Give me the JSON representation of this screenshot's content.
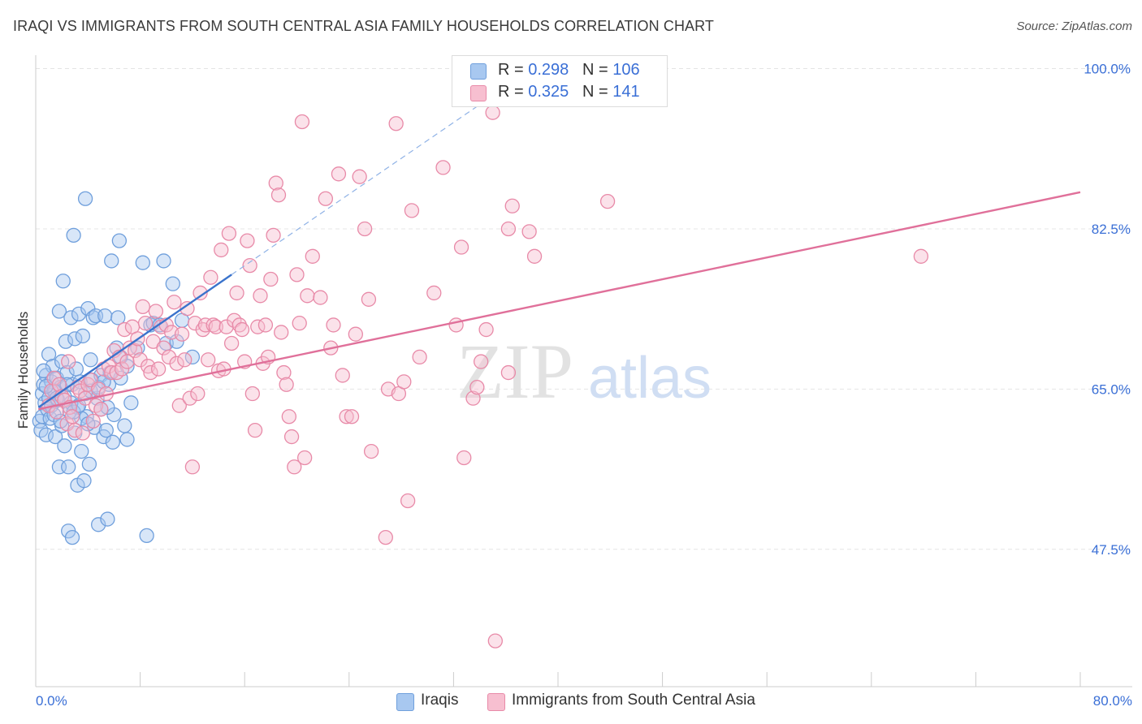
{
  "title": "IRAQI VS IMMIGRANTS FROM SOUTH CENTRAL ASIA FAMILY HOUSEHOLDS CORRELATION CHART",
  "source": "Source: ZipAtlas.com",
  "watermark": {
    "zip": "ZIP",
    "atlas": "atlas"
  },
  "legend_top": [
    {
      "r_label": "R = ",
      "r_value": "0.298",
      "n_label": "N = ",
      "n_value": "106"
    },
    {
      "r_label": "R = ",
      "r_value": "0.325",
      "n_label": "N = ",
      "n_value": " 141"
    }
  ],
  "legend_bottom": [
    "Iraqis",
    "Immigrants from South Central Asia"
  ],
  "colors": {
    "blue_fill": "#a8c8f0",
    "blue_stroke": "#6f9fdc",
    "blue_line": "#3a73cc",
    "pink_fill": "#f7bfd0",
    "pink_stroke": "#e88aa8",
    "pink_line": "#e0709a",
    "tick_label": "#3a6fd6",
    "grid": "#e4e4e4"
  },
  "chart_data": {
    "type": "scatter",
    "title": "IRAQI VS IMMIGRANTS FROM SOUTH CENTRAL ASIA FAMILY HOUSEHOLDS CORRELATION CHART",
    "xlabel": "",
    "ylabel": "Family Households",
    "xlim": [
      0,
      80
    ],
    "ylim": [
      32.5,
      102
    ],
    "x_tick_labels": [
      "0.0%",
      "80.0%"
    ],
    "y_ticks": [
      47.5,
      65.0,
      82.5,
      100.0
    ],
    "y_tick_labels": [
      "47.5%",
      "65.0%",
      "82.5%",
      "100.0%"
    ],
    "grid": true,
    "legend_placement": "top-center",
    "series": [
      {
        "name": "Iraqis",
        "R": 0.298,
        "N": 106,
        "trend": {
          "x": [
            0.2,
            15
          ],
          "y": [
            63.0,
            77.5
          ]
        },
        "trend_extension": {
          "x": [
            15,
            37
          ],
          "y": [
            77.5,
            99.0
          ]
        },
        "points": [
          [
            0.3,
            61.5
          ],
          [
            0.4,
            60.5
          ],
          [
            0.5,
            62.0
          ],
          [
            0.5,
            64.5
          ],
          [
            0.6,
            65.5
          ],
          [
            0.7,
            63.5
          ],
          [
            0.8,
            66.5
          ],
          [
            0.8,
            60.0
          ],
          [
            0.9,
            62.8
          ],
          [
            1.0,
            64.0
          ],
          [
            1.0,
            68.8
          ],
          [
            1.1,
            61.8
          ],
          [
            1.2,
            65.8
          ],
          [
            1.2,
            63.2
          ],
          [
            1.3,
            67.5
          ],
          [
            1.4,
            62.2
          ],
          [
            1.5,
            64.8
          ],
          [
            1.5,
            59.8
          ],
          [
            1.6,
            66.2
          ],
          [
            1.7,
            63.8
          ],
          [
            1.8,
            73.5
          ],
          [
            1.8,
            56.5
          ],
          [
            1.9,
            65.2
          ],
          [
            2.0,
            61.0
          ],
          [
            2.0,
            68.0
          ],
          [
            2.1,
            76.8
          ],
          [
            2.2,
            58.8
          ],
          [
            2.2,
            64.2
          ],
          [
            2.3,
            70.2
          ],
          [
            2.4,
            66.8
          ],
          [
            2.5,
            56.5
          ],
          [
            2.5,
            49.5
          ],
          [
            2.6,
            62.5
          ],
          [
            2.7,
            72.8
          ],
          [
            2.8,
            65.5
          ],
          [
            2.8,
            48.8
          ],
          [
            2.9,
            81.8
          ],
          [
            3.0,
            70.5
          ],
          [
            3.0,
            60.2
          ],
          [
            3.1,
            67.2
          ],
          [
            3.2,
            54.5
          ],
          [
            3.2,
            63.0
          ],
          [
            3.3,
            73.2
          ],
          [
            3.4,
            65.8
          ],
          [
            3.5,
            58.2
          ],
          [
            3.6,
            70.8
          ],
          [
            3.7,
            55.0
          ],
          [
            3.8,
            64.5
          ],
          [
            3.8,
            85.8
          ],
          [
            3.9,
            62.0
          ],
          [
            4.0,
            73.8
          ],
          [
            4.1,
            56.8
          ],
          [
            4.2,
            68.2
          ],
          [
            4.3,
            66.0
          ],
          [
            4.4,
            72.8
          ],
          [
            4.5,
            60.8
          ],
          [
            4.6,
            73.0
          ],
          [
            4.7,
            64.0
          ],
          [
            4.8,
            50.2
          ],
          [
            5.0,
            66.5
          ],
          [
            5.0,
            62.8
          ],
          [
            5.2,
            59.8
          ],
          [
            5.3,
            73.0
          ],
          [
            5.4,
            60.5
          ],
          [
            5.5,
            50.8
          ],
          [
            5.6,
            65.5
          ],
          [
            5.7,
            66.8
          ],
          [
            5.8,
            79.0
          ],
          [
            5.9,
            59.2
          ],
          [
            6.0,
            62.2
          ],
          [
            6.2,
            69.5
          ],
          [
            6.3,
            72.8
          ],
          [
            6.4,
            81.2
          ],
          [
            6.5,
            68.5
          ],
          [
            6.8,
            61.0
          ],
          [
            7.0,
            59.5
          ],
          [
            7.0,
            67.5
          ],
          [
            7.3,
            63.5
          ],
          [
            7.8,
            69.5
          ],
          [
            8.2,
            78.8
          ],
          [
            8.5,
            49.0
          ],
          [
            8.8,
            72.0
          ],
          [
            9.0,
            72.2
          ],
          [
            9.5,
            72.0
          ],
          [
            9.8,
            79.0
          ],
          [
            10.0,
            70.0
          ],
          [
            10.5,
            76.5
          ],
          [
            10.8,
            70.2
          ],
          [
            11.2,
            72.5
          ],
          [
            12.0,
            68.5
          ],
          [
            0.6,
            67.0
          ],
          [
            1.4,
            64.8
          ],
          [
            2.7,
            63.5
          ],
          [
            3.5,
            61.8
          ],
          [
            4.2,
            64.8
          ],
          [
            4.8,
            65.2
          ],
          [
            5.5,
            63.0
          ],
          [
            6.5,
            66.2
          ],
          [
            1.9,
            61.5
          ],
          [
            2.9,
            62.5
          ],
          [
            0.8,
            65.3
          ],
          [
            1.6,
            64.0
          ],
          [
            2.4,
            65.5
          ],
          [
            3.3,
            63.2
          ],
          [
            4.0,
            61.2
          ],
          [
            5.2,
            65.8
          ]
        ]
      },
      {
        "name": "Immigrants from South Central Asia",
        "R": 0.325,
        "N": 141,
        "trend": {
          "x": [
            0.2,
            80
          ],
          "y": [
            62.8,
            86.5
          ]
        },
        "points": [
          [
            1.0,
            63.2
          ],
          [
            1.2,
            64.8
          ],
          [
            1.4,
            66.2
          ],
          [
            1.6,
            62.5
          ],
          [
            1.8,
            65.5
          ],
          [
            2.0,
            64.2
          ],
          [
            2.2,
            63.8
          ],
          [
            2.4,
            61.2
          ],
          [
            2.6,
            63.0
          ],
          [
            2.8,
            62.0
          ],
          [
            3.0,
            60.5
          ],
          [
            3.2,
            65.2
          ],
          [
            3.4,
            64.8
          ],
          [
            3.6,
            60.2
          ],
          [
            3.8,
            64.0
          ],
          [
            4.0,
            65.5
          ],
          [
            4.2,
            66.0
          ],
          [
            4.4,
            61.5
          ],
          [
            4.6,
            63.2
          ],
          [
            4.8,
            65.0
          ],
          [
            5.0,
            62.8
          ],
          [
            5.2,
            67.2
          ],
          [
            5.4,
            64.5
          ],
          [
            5.6,
            67.5
          ],
          [
            5.8,
            66.8
          ],
          [
            6.0,
            69.2
          ],
          [
            6.2,
            66.8
          ],
          [
            6.4,
            68.5
          ],
          [
            6.6,
            67.2
          ],
          [
            6.8,
            71.5
          ],
          [
            7.0,
            68.0
          ],
          [
            7.2,
            69.5
          ],
          [
            7.4,
            71.8
          ],
          [
            7.6,
            69.2
          ],
          [
            7.8,
            70.5
          ],
          [
            8.0,
            68.2
          ],
          [
            8.2,
            74.0
          ],
          [
            8.4,
            72.2
          ],
          [
            8.6,
            67.5
          ],
          [
            8.8,
            66.8
          ],
          [
            9.0,
            70.2
          ],
          [
            9.2,
            73.5
          ],
          [
            9.4,
            67.2
          ],
          [
            9.6,
            71.8
          ],
          [
            9.8,
            69.5
          ],
          [
            10.0,
            72.0
          ],
          [
            10.2,
            68.5
          ],
          [
            10.4,
            71.2
          ],
          [
            10.6,
            74.5
          ],
          [
            10.8,
            67.8
          ],
          [
            11.0,
            63.2
          ],
          [
            11.2,
            71.0
          ],
          [
            11.4,
            68.2
          ],
          [
            11.6,
            73.8
          ],
          [
            11.8,
            64.0
          ],
          [
            12.0,
            56.5
          ],
          [
            12.2,
            72.2
          ],
          [
            12.4,
            64.5
          ],
          [
            12.6,
            75.5
          ],
          [
            12.8,
            71.5
          ],
          [
            13.0,
            72.0
          ],
          [
            13.2,
            68.2
          ],
          [
            13.4,
            77.2
          ],
          [
            13.6,
            72.0
          ],
          [
            13.8,
            71.8
          ],
          [
            14.0,
            67.0
          ],
          [
            14.2,
            80.2
          ],
          [
            14.4,
            67.2
          ],
          [
            14.6,
            71.8
          ],
          [
            14.8,
            82.0
          ],
          [
            15.0,
            70.0
          ],
          [
            15.2,
            72.5
          ],
          [
            15.4,
            75.5
          ],
          [
            15.6,
            72.0
          ],
          [
            15.8,
            71.5
          ],
          [
            16.0,
            68.0
          ],
          [
            16.2,
            81.2
          ],
          [
            16.4,
            78.5
          ],
          [
            16.6,
            64.5
          ],
          [
            16.8,
            60.5
          ],
          [
            17.0,
            71.8
          ],
          [
            17.2,
            75.2
          ],
          [
            17.4,
            67.8
          ],
          [
            17.6,
            72.0
          ],
          [
            17.8,
            68.5
          ],
          [
            18.0,
            77.0
          ],
          [
            18.2,
            81.8
          ],
          [
            18.4,
            87.5
          ],
          [
            18.6,
            86.2
          ],
          [
            18.8,
            71.2
          ],
          [
            19.0,
            66.8
          ],
          [
            19.2,
            65.5
          ],
          [
            19.4,
            62.0
          ],
          [
            19.6,
            59.8
          ],
          [
            19.8,
            56.5
          ],
          [
            20.0,
            77.5
          ],
          [
            20.2,
            72.2
          ],
          [
            20.4,
            94.2
          ],
          [
            20.6,
            57.5
          ],
          [
            20.8,
            75.2
          ],
          [
            21.2,
            79.5
          ],
          [
            21.8,
            75.0
          ],
          [
            22.2,
            85.8
          ],
          [
            22.6,
            69.5
          ],
          [
            22.8,
            72.0
          ],
          [
            23.2,
            88.5
          ],
          [
            23.5,
            66.5
          ],
          [
            23.8,
            62.0
          ],
          [
            24.2,
            62.0
          ],
          [
            24.5,
            71.0
          ],
          [
            24.8,
            88.2
          ],
          [
            25.2,
            82.5
          ],
          [
            25.5,
            74.8
          ],
          [
            25.7,
            58.2
          ],
          [
            26.8,
            48.8
          ],
          [
            27.0,
            65.0
          ],
          [
            27.6,
            94.0
          ],
          [
            27.8,
            64.5
          ],
          [
            28.2,
            65.8
          ],
          [
            28.5,
            52.8
          ],
          [
            28.8,
            84.5
          ],
          [
            29.4,
            68.5
          ],
          [
            30.5,
            75.5
          ],
          [
            31.2,
            89.2
          ],
          [
            32.2,
            72.0
          ],
          [
            32.6,
            80.5
          ],
          [
            32.8,
            57.5
          ],
          [
            33.5,
            64.0
          ],
          [
            33.8,
            65.2
          ],
          [
            34.1,
            68.0
          ],
          [
            34.5,
            71.5
          ],
          [
            35.0,
            95.2
          ],
          [
            35.2,
            37.5
          ],
          [
            36.2,
            66.8
          ],
          [
            36.5,
            85.0
          ],
          [
            36.2,
            82.5
          ],
          [
            37.8,
            82.2
          ],
          [
            38.2,
            79.5
          ],
          [
            43.8,
            85.5
          ],
          [
            67.8,
            79.5
          ],
          [
            2.5,
            68.0
          ]
        ]
      }
    ]
  }
}
